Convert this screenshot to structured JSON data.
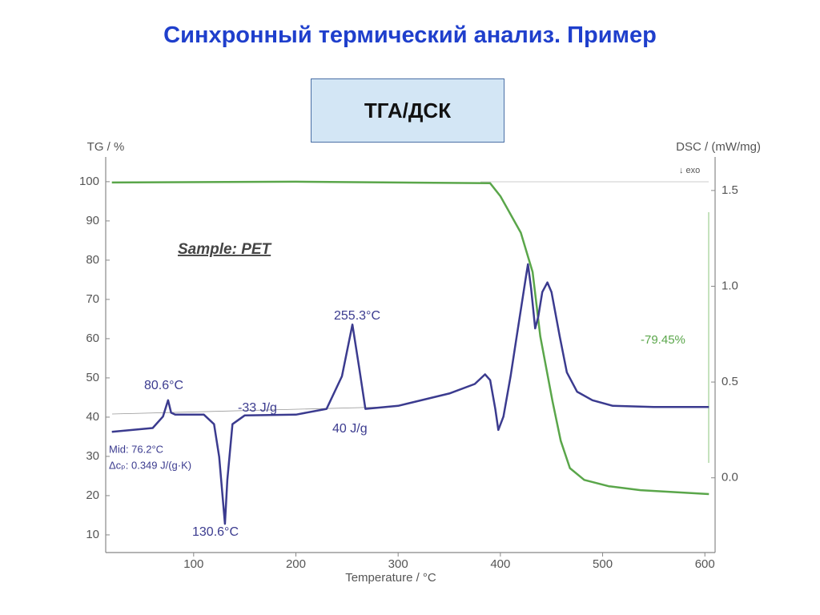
{
  "header": {
    "title": "Синхронный термический анализ. Пример",
    "box_label": "ТГА/ДСК"
  },
  "chart_data": {
    "type": "line",
    "xlabel": "Temperature / °C",
    "ylabel": "TG / %",
    "y2label": "DSC / (mW/mg)",
    "xlim": [
      14,
      610
    ],
    "xticks": [
      100,
      200,
      300,
      400,
      500,
      600
    ],
    "ylim": [
      5.5,
      106.3
    ],
    "yticks": [
      10,
      20,
      30,
      40,
      50,
      60,
      70,
      80,
      90,
      100
    ],
    "y2lim": [
      -0.39,
      1.675
    ],
    "y2ticks": [
      {
        "value": 0,
        "label": "0.0"
      },
      0.5,
      {
        "value": 1,
        "label": "1.0"
      },
      1.5
    ],
    "series": [
      {
        "color": "#5aa64a",
        "axis": "y",
        "x": [
          20,
          200,
          390,
          400,
          420,
          431.5,
          439,
          451,
          459,
          468,
          482,
          506,
          537,
          604
        ],
        "values": [
          99.8,
          100,
          99.6,
          96.3,
          87,
          77,
          60.6,
          44,
          34,
          27,
          24,
          22.4,
          21.4,
          20.4
        ]
      },
      {
        "color": "#3b3b8f",
        "axis": "y2",
        "x": [
          20,
          60,
          70,
          75,
          78,
          82,
          110,
          120,
          125,
          130.6,
          133,
          138,
          150,
          200,
          230,
          245,
          255.3,
          262,
          268,
          300,
          350,
          375,
          385,
          390,
          395,
          398,
          403,
          410,
          416,
          425,
          427,
          430,
          434,
          437,
          441,
          446,
          450,
          458,
          465,
          475,
          490,
          510,
          550,
          604
        ],
        "values": [
          0.24,
          0.26,
          0.32,
          0.405,
          0.34,
          0.33,
          0.33,
          0.28,
          0.11,
          -0.24,
          -0.01,
          0.28,
          0.326,
          0.33,
          0.36,
          0.53,
          0.8,
          0.57,
          0.36,
          0.376,
          0.44,
          0.49,
          0.54,
          0.51,
          0.36,
          0.25,
          0.32,
          0.53,
          0.74,
          1.05,
          1.115,
          0.99,
          0.78,
          0.84,
          0.97,
          1.02,
          0.97,
          0.74,
          0.55,
          0.45,
          0.405,
          0.376,
          0.37,
          0.37
        ]
      }
    ],
    "annotations": [
      "Sample: PET",
      "80.6°C",
      "255.3°C",
      "-33 J/g",
      "40 J/g",
      "Mid: 76.2°C",
      "Δcₚ: 0.349 J/(g·K)",
      "130.6°C",
      "-79.45%",
      "↓ exo"
    ]
  }
}
